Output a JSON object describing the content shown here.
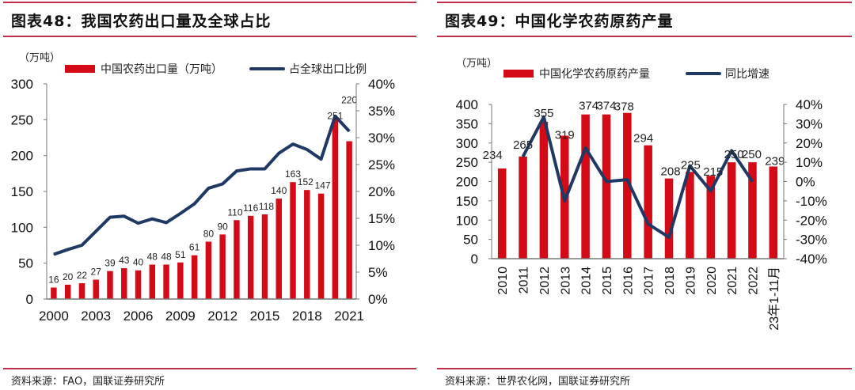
{
  "left": {
    "title": "图表48：我国农药出口量及全球占比",
    "source": "资料来源：FAO，国联证券研究所",
    "chart_data": {
      "type": "bar",
      "unit_label": "（万吨）",
      "categories": [
        "2000",
        "2001",
        "2002",
        "2003",
        "2004",
        "2005",
        "2006",
        "2007",
        "2008",
        "2009",
        "2010",
        "2011",
        "2012",
        "2013",
        "2014",
        "2015",
        "2016",
        "2017",
        "2018",
        "2019",
        "2020",
        "2021"
      ],
      "xtick_labels": [
        "2000",
        "2003",
        "2006",
        "2009",
        "2012",
        "2015",
        "2018",
        "2021"
      ],
      "ylim": [
        0,
        300
      ],
      "yticks": [
        "0",
        "50",
        "100",
        "150",
        "200",
        "250",
        "300"
      ],
      "y2lim": [
        0,
        0.4
      ],
      "y2ticks": [
        "0%",
        "5%",
        "10%",
        "15%",
        "20%",
        "25%",
        "30%",
        "35%",
        "40%"
      ],
      "series": [
        {
          "name": "中国农药出口量（万吨）",
          "type": "bar",
          "axis": "left",
          "color": "#d40b16",
          "values": [
            16,
            20,
            22,
            27,
            39,
            43,
            40,
            48,
            48,
            51,
            61,
            80,
            90,
            110,
            116,
            118,
            140,
            163,
            152,
            147,
            251,
            220
          ],
          "labels": [
            "16",
            "20",
            "22",
            "27",
            "39",
            "43",
            "40",
            "48",
            "48",
            "51",
            "61",
            "80",
            "90",
            "110",
            "116",
            "118",
            "140",
            "163",
            "152",
            "147",
            "251",
            "220"
          ]
        },
        {
          "name": "占全球出口比例",
          "type": "line",
          "axis": "right",
          "color": "#1f3864",
          "values": [
            0.083,
            0.092,
            0.1,
            0.126,
            0.152,
            0.154,
            0.141,
            0.149,
            0.142,
            0.159,
            0.177,
            0.206,
            0.214,
            0.238,
            0.242,
            0.242,
            0.271,
            0.288,
            0.278,
            0.26,
            0.34,
            0.312
          ]
        }
      ],
      "legend": "top"
    }
  },
  "right": {
    "title": "图表49：中国化学农药原药产量",
    "source": "资料来源：世界农化网，国联证券研究所",
    "chart_data": {
      "type": "bar",
      "unit_label": "（万吨）",
      "categories": [
        "2010",
        "2011",
        "2012",
        "2013",
        "2014",
        "2015",
        "2016",
        "2017",
        "2018",
        "2019",
        "2020",
        "2021",
        "2022",
        "23年1-11月"
      ],
      "ylim": [
        0,
        400
      ],
      "yticks": [
        "0",
        "50",
        "100",
        "150",
        "200",
        "250",
        "300",
        "350",
        "400"
      ],
      "y2lim": [
        -0.4,
        0.4
      ],
      "y2ticks": [
        "-40%",
        "-30%",
        "-20%",
        "-10%",
        "0%",
        "10%",
        "20%",
        "30%",
        "40%"
      ],
      "series": [
        {
          "name": "中国化学农药原药产量",
          "type": "bar",
          "axis": "left",
          "color": "#d40b16",
          "values": [
            234,
            265,
            355,
            319,
            374,
            374,
            378,
            294,
            208,
            225,
            215,
            250,
            250,
            239
          ],
          "labels": [
            "234",
            "265",
            "355",
            "319",
            "374",
            "374",
            "378",
            "294",
            "208",
            "225",
            "215",
            "250",
            "250",
            "239"
          ]
        },
        {
          "name": "同比增速",
          "type": "line",
          "axis": "right",
          "color": "#1f3864",
          "values": [
            null,
            0.129,
            0.335,
            -0.1,
            0.174,
            0.0,
            0.01,
            -0.22,
            -0.289,
            0.082,
            -0.049,
            0.16,
            0.0,
            null
          ]
        }
      ],
      "legend": "top"
    }
  }
}
